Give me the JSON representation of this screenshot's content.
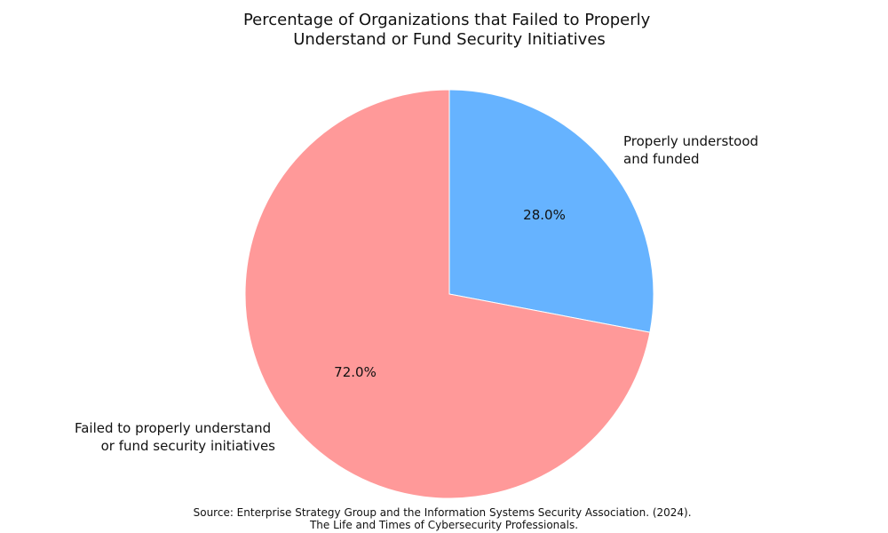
{
  "chart_data": {
    "type": "pie",
    "title": [
      "Percentage of Organizations that Failed to Properly",
      "Understand or Fund Security Initiatives"
    ],
    "slices": [
      {
        "label": [
          "Properly understood",
          "and funded"
        ],
        "value": 28.0,
        "percent_label": "28.0%",
        "color": "#66b3ff"
      },
      {
        "label": [
          "Failed to properly understand",
          "or fund security initiatives"
        ],
        "value": 72.0,
        "percent_label": "72.0%",
        "color": "#ff9999"
      }
    ],
    "source": [
      "Source: Enterprise Strategy Group and the Information Systems Security Association. (2024).",
      "The Life and Times of Cybersecurity Professionals."
    ]
  }
}
